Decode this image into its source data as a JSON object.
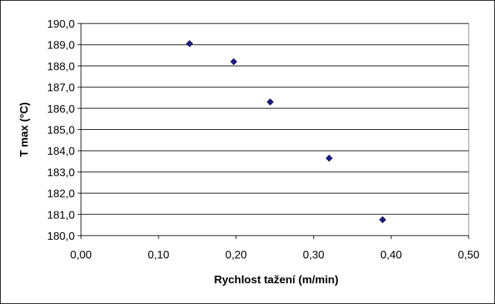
{
  "chart_data": {
    "type": "scatter",
    "title": "",
    "xlabel": "Rychlost tažení (m/min)",
    "ylabel": "T max (°C)",
    "xlim": [
      0,
      0.5
    ],
    "ylim": [
      180,
      190
    ],
    "x_ticks": [
      "0,00",
      "0,10",
      "0,20",
      "0,30",
      "0,40",
      "0,50"
    ],
    "y_ticks": [
      "180,0",
      "181,0",
      "182,0",
      "183,0",
      "184,0",
      "185,0",
      "186,0",
      "187,0",
      "188,0",
      "189,0",
      "190,0"
    ],
    "grid": "horizontal",
    "legend": "none",
    "marker": "diamond",
    "marker_color": "#1a1a8c",
    "series": [
      {
        "x": [
          0.14,
          0.197,
          0.244,
          0.32,
          0.389
        ],
        "y": [
          189.05,
          188.2,
          186.3,
          183.65,
          180.75
        ]
      }
    ]
  }
}
